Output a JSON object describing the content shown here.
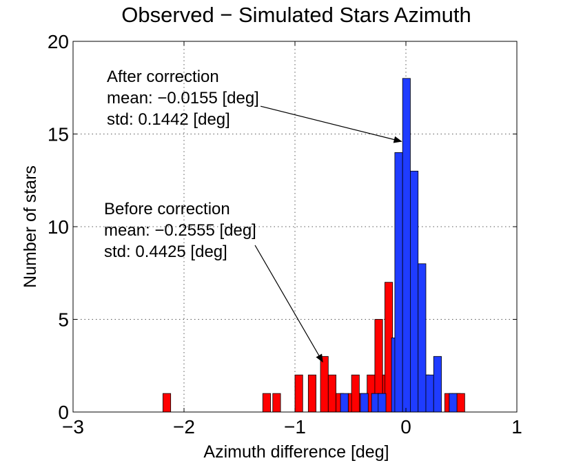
{
  "chart_data": {
    "type": "bar",
    "title": "Observed − Simulated Stars Azimuth",
    "xlabel": "Azimuth difference [deg]",
    "ylabel": "Number of stars",
    "xlim": [
      -3,
      1
    ],
    "ylim": [
      0,
      20
    ],
    "xticks": [
      -3,
      -2,
      -1,
      0,
      1
    ],
    "xtick_labels": [
      "−3",
      "−2",
      "−1",
      "0",
      "1"
    ],
    "yticks": [
      0,
      5,
      10,
      15,
      20
    ],
    "ytick_labels": [
      "0",
      "5",
      "10",
      "15",
      "20"
    ],
    "grid": true,
    "bin_width": 0.07,
    "series": [
      {
        "name": "Before correction",
        "color": "#ff0000",
        "bins": [
          {
            "x0": -2.19,
            "count": 1
          },
          {
            "x0": -1.29,
            "count": 1
          },
          {
            "x0": -1.2,
            "count": 1
          },
          {
            "x0": -1.0,
            "count": 2
          },
          {
            "x0": -0.88,
            "count": 2
          },
          {
            "x0": -0.77,
            "count": 3
          },
          {
            "x0": -0.7,
            "count": 2
          },
          {
            "x0": -0.63,
            "count": 1
          },
          {
            "x0": -0.52,
            "count": 1
          },
          {
            "x0": -0.49,
            "count": 2
          },
          {
            "x0": -0.42,
            "count": 1
          },
          {
            "x0": -0.35,
            "count": 2
          },
          {
            "x0": -0.28,
            "count": 5
          },
          {
            "x0": -0.21,
            "count": 2
          },
          {
            "x0": -0.19,
            "count": 7
          },
          {
            "x0": 0.14,
            "count": 2
          },
          {
            "x0": 0.35,
            "count": 1
          },
          {
            "x0": 0.42,
            "count": 1
          },
          {
            "x0": 0.46,
            "count": 1
          }
        ]
      },
      {
        "name": "After correction",
        "color": "#1f3cff",
        "bins": [
          {
            "x0": -0.59,
            "count": 1
          },
          {
            "x0": -0.41,
            "count": 1
          },
          {
            "x0": -0.31,
            "count": 1
          },
          {
            "x0": -0.25,
            "count": 1
          },
          {
            "x0": -0.13,
            "count": 4
          },
          {
            "x0": -0.1,
            "count": 14
          },
          {
            "x0": -0.03,
            "count": 18
          },
          {
            "x0": 0.04,
            "count": 13
          },
          {
            "x0": 0.11,
            "count": 8
          },
          {
            "x0": 0.18,
            "count": 2
          },
          {
            "x0": 0.25,
            "count": 3
          },
          {
            "x0": 0.39,
            "count": 1
          }
        ]
      }
    ],
    "annotations": [
      {
        "lines": [
          "After correction",
          "mean: −0.0155 [deg]",
          "std: 0.1442 [deg]"
        ],
        "arrow_from": [
          -1.31,
          16.5
        ],
        "arrow_to": [
          -0.04,
          14.6
        ]
      },
      {
        "lines": [
          "Before correction",
          "mean: −0.2555 [deg]",
          "std: 0.4425 [deg]"
        ],
        "arrow_from": [
          -1.36,
          9.0
        ],
        "arrow_to": [
          -0.75,
          2.7
        ]
      }
    ]
  }
}
